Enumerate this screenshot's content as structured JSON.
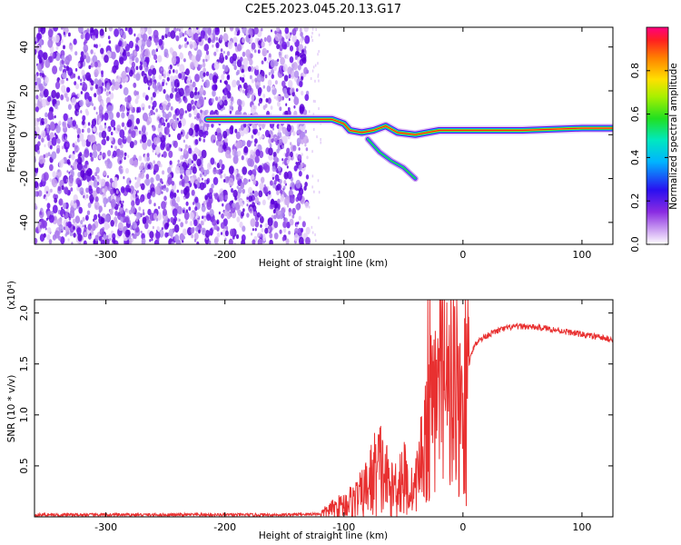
{
  "chart_data": [
    {
      "type": "heatmap",
      "title": "C2E5.2023.045.20.13.G17",
      "xlabel": "Height of straight line (km)",
      "ylabel": "Frequency (Hz)",
      "xlim": [
        -360,
        126
      ],
      "ylim": [
        -50,
        49
      ],
      "xticks": [
        -300,
        -200,
        -100,
        0,
        100
      ],
      "yticks": [
        40,
        20,
        0,
        -20,
        -40
      ],
      "colorbar": {
        "label": "Normalized spectral amplitude",
        "range": [
          0.0,
          1.0
        ],
        "ticks": [
          0.0,
          0.2,
          0.4,
          0.6,
          0.8
        ],
        "tick_labels": [
          "0.0",
          "0.2",
          "0.4",
          "0.6",
          "0.8"
        ],
        "colormap": "rainbow (white-violet-blue-cyan-green-yellow-orange-red)"
      },
      "features": {
        "noise_region_x": [
          -360,
          -130
        ],
        "signal_trace": [
          {
            "x": -215,
            "y": 7
          },
          {
            "x": -200,
            "y": 7
          },
          {
            "x": -175,
            "y": 7
          },
          {
            "x": -130,
            "y": 7
          },
          {
            "x": -110,
            "y": 7
          },
          {
            "x": -100,
            "y": 5
          },
          {
            "x": -95,
            "y": 2
          },
          {
            "x": -85,
            "y": 1
          },
          {
            "x": -75,
            "y": 2
          },
          {
            "x": -65,
            "y": 4
          },
          {
            "x": -55,
            "y": 1
          },
          {
            "x": -40,
            "y": 0
          },
          {
            "x": -20,
            "y": 2
          },
          {
            "x": 0,
            "y": 2
          },
          {
            "x": 50,
            "y": 2
          },
          {
            "x": 100,
            "y": 3
          },
          {
            "x": 126,
            "y": 3
          }
        ],
        "diverging_branch": [
          {
            "x": -80,
            "y": -2
          },
          {
            "x": -70,
            "y": -8
          },
          {
            "x": -60,
            "y": -12
          },
          {
            "x": -50,
            "y": -15
          },
          {
            "x": -40,
            "y": -20
          }
        ]
      }
    },
    {
      "type": "line",
      "xlabel": "Height of straight line (km)",
      "ylabel": "SNR (10 * v/v)",
      "multiplier": "(x10⁴)",
      "xlim": [
        -360,
        126
      ],
      "ylim": [
        0,
        2.13
      ],
      "xticks": [
        -300,
        -200,
        -100,
        0,
        100
      ],
      "yticks": [
        0.5,
        1.0,
        1.5,
        2.0
      ],
      "ytick_labels": [
        "0.5",
        "1.0",
        "1.5",
        "2.0"
      ],
      "color": "#e83030",
      "series": [
        {
          "x": [
            -360,
            -300,
            -250,
            -200,
            -150,
            -120,
            -110,
            -100,
            -95,
            -90,
            -85,
            -80,
            -75,
            -70,
            -65,
            -60,
            -55,
            -50,
            -45,
            -40,
            -35,
            -30,
            -25,
            -20,
            -15,
            -10,
            -5,
            0,
            5,
            10,
            20,
            30,
            40,
            50,
            60,
            70,
            80,
            90,
            100,
            110,
            120,
            126
          ],
          "y": [
            0.02,
            0.02,
            0.02,
            0.02,
            0.02,
            0.03,
            0.08,
            0.12,
            0.15,
            0.18,
            0.22,
            0.3,
            0.4,
            0.48,
            0.38,
            0.25,
            0.35,
            0.4,
            0.25,
            0.3,
            0.6,
            0.85,
            1.1,
            1.2,
            1.3,
            1.35,
            1.2,
            1.1,
            1.5,
            1.7,
            1.78,
            1.83,
            1.86,
            1.87,
            1.86,
            1.85,
            1.83,
            1.81,
            1.79,
            1.77,
            1.75,
            1.74
          ]
        }
      ]
    }
  ]
}
